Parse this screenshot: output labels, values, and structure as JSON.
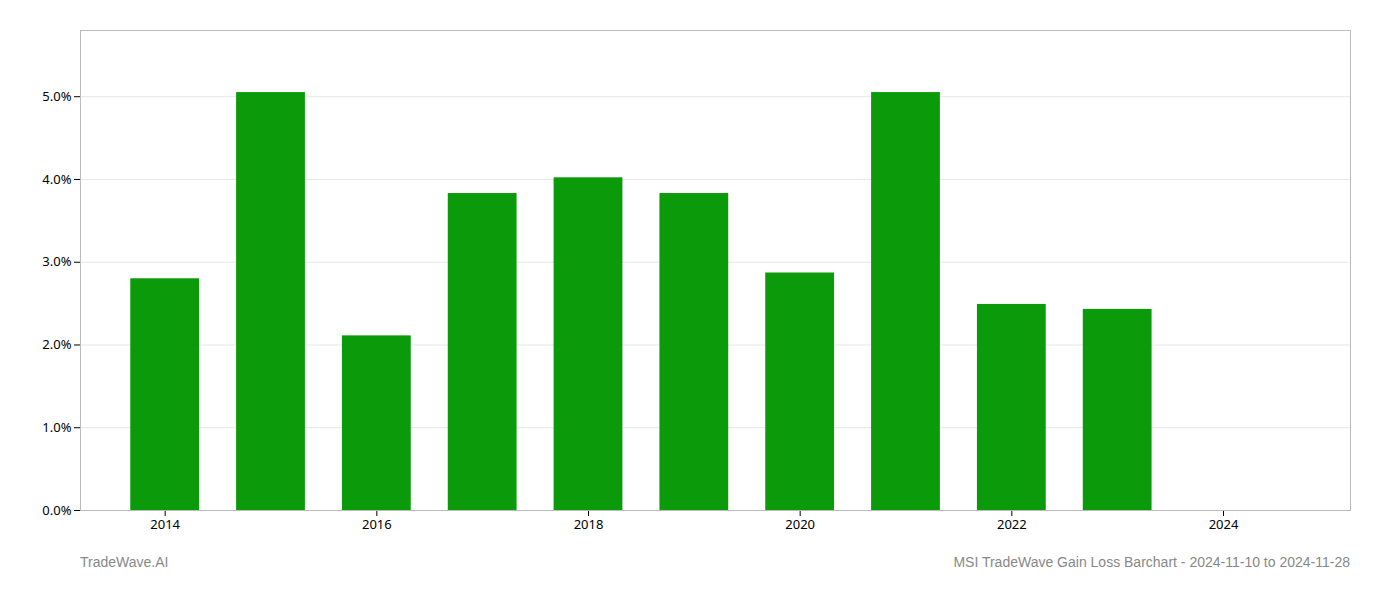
{
  "chart_data": {
    "type": "bar",
    "x": [
      2014,
      2015,
      2016,
      2017,
      2018,
      2019,
      2020,
      2021,
      2022,
      2023
    ],
    "values": [
      0.028,
      0.0505,
      0.0211,
      0.0383,
      0.0402,
      0.0383,
      0.0287,
      0.0505,
      0.0249,
      0.0243
    ],
    "color": "#0a9a0a",
    "xlim": [
      2013.2,
      2025.2
    ],
    "xticks": [
      2014,
      2016,
      2018,
      2020,
      2022,
      2024
    ],
    "ylim": [
      0,
      0.058
    ],
    "yticks": [
      {
        "value": 0.0,
        "label": "0.0%"
      },
      {
        "value": 0.01,
        "label": "1.0%"
      },
      {
        "value": 0.02,
        "label": "2.0%"
      },
      {
        "value": 0.03,
        "label": "3.0%"
      },
      {
        "value": 0.04,
        "label": "4.0%"
      },
      {
        "value": 0.05,
        "label": "5.0%"
      }
    ],
    "grid": true,
    "annotations": [
      "TradeWave.AI",
      "MSI TradeWave Gain Loss Barchart - 2024-11-10 to 2024-11-28"
    ]
  }
}
